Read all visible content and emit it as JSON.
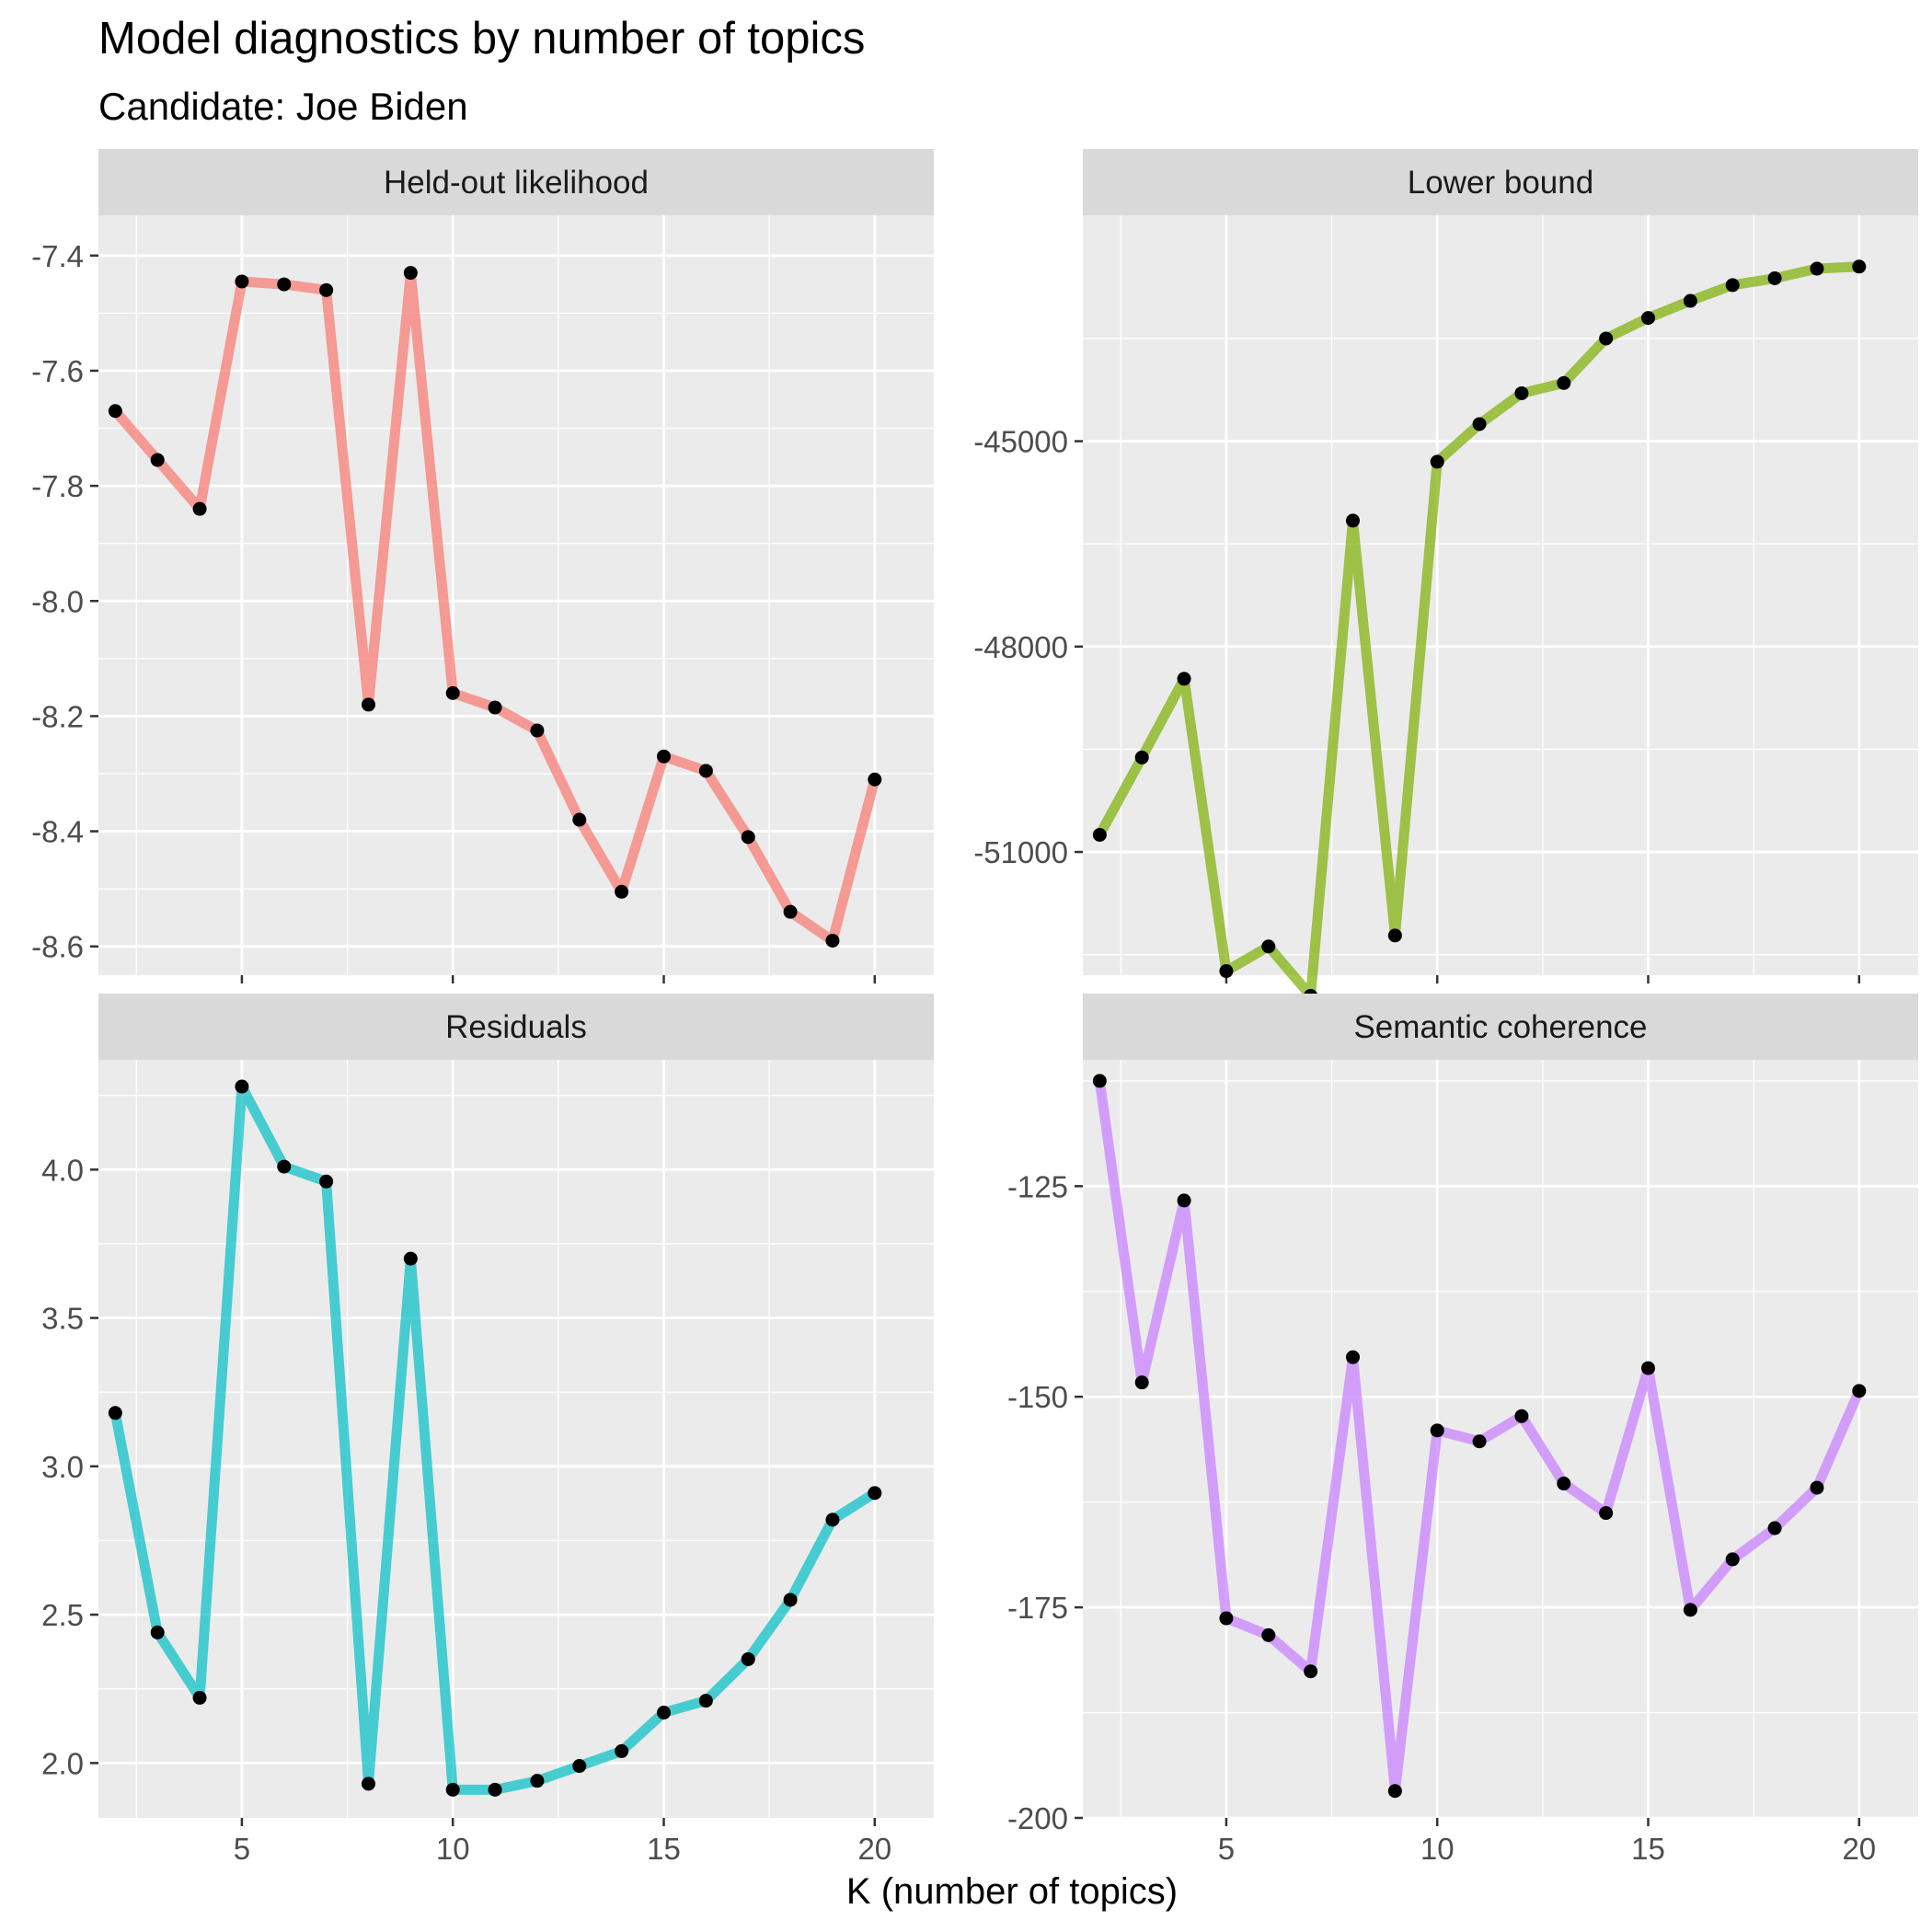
{
  "header": {
    "title": "Model diagnostics by number of topics",
    "subtitle": "Candidate: Joe Biden"
  },
  "colors": {
    "panel_background": "#EBEBEB",
    "strip_background": "#D9D9D9",
    "grid": "#FFFFFF",
    "point": "#000000"
  },
  "chart_data": {
    "type": "line",
    "layout": "facet_wrap 2x2, free y-scales",
    "xlabel": "K (number of topics)",
    "xlim": [
      1.6,
      21.4
    ],
    "x_ticks": [
      5,
      10,
      15,
      20
    ],
    "grid": true,
    "x": [
      2,
      3,
      4,
      5,
      6,
      7,
      8,
      9,
      10,
      11,
      12,
      13,
      14,
      15,
      16,
      17,
      18,
      19,
      20
    ],
    "panels": [
      {
        "name": "Held-out likelihood",
        "color": "#F8766D",
        "ylim": [
          -8.65,
          -7.33
        ],
        "y_ticks": [
          -8.6,
          -8.4,
          -8.2,
          -8.0,
          -7.8,
          -7.6,
          -7.4
        ],
        "y_tick_labels": [
          "-8.6",
          "-8.4",
          "-8.2",
          "-8.0",
          "-7.8",
          "-7.6",
          "-7.4"
        ],
        "values": [
          -7.67,
          -7.755,
          -7.84,
          -7.445,
          -7.45,
          -7.46,
          -8.18,
          -7.43,
          -8.16,
          -8.185,
          -8.225,
          -8.38,
          -8.505,
          -8.27,
          -8.295,
          -8.41,
          -8.54,
          -8.59,
          -8.31
        ]
      },
      {
        "name": "Lower bound",
        "color": "#7CAE00",
        "ylim": [
          -52800,
          -41700
        ],
        "y_ticks": [
          -51000,
          -48000,
          -45000
        ],
        "y_tick_labels": [
          "-51000",
          "-48000",
          "-45000"
        ],
        "values": [
          -50750,
          -49620,
          -48470,
          -52740,
          -52380,
          -53100,
          -46160,
          -52220,
          -45300,
          -44750,
          -44300,
          -44150,
          -43500,
          -43200,
          -42950,
          -42720,
          -42620,
          -42480,
          -42450
        ]
      },
      {
        "name": "Residuals",
        "color": "#00BFC4",
        "ylim": [
          1.815,
          4.37
        ],
        "y_ticks": [
          2.0,
          2.5,
          3.0,
          3.5,
          4.0
        ],
        "y_tick_labels": [
          "2.0",
          "2.5",
          "3.0",
          "3.5",
          "4.0"
        ],
        "values": [
          3.18,
          2.44,
          2.22,
          4.28,
          4.01,
          3.96,
          1.93,
          3.7,
          1.91,
          1.91,
          1.94,
          1.99,
          2.04,
          2.17,
          2.21,
          2.35,
          2.55,
          2.82,
          2.91
        ]
      },
      {
        "name": "Semantic coherence",
        "color": "#C77CFF",
        "ylim": [
          -200,
          -110
        ],
        "y_ticks": [
          -200,
          -175,
          -150,
          -125
        ],
        "y_tick_labels": [
          "-200",
          "-175",
          "-150",
          "-125"
        ],
        "values": [
          -112.5,
          -148.3,
          -126.7,
          -176.3,
          -178.3,
          -182.6,
          -145.3,
          -196.8,
          -154.0,
          -155.3,
          -152.3,
          -160.3,
          -163.8,
          -146.6,
          -175.3,
          -169.3,
          -165.6,
          -160.8,
          -149.3
        ]
      }
    ]
  }
}
